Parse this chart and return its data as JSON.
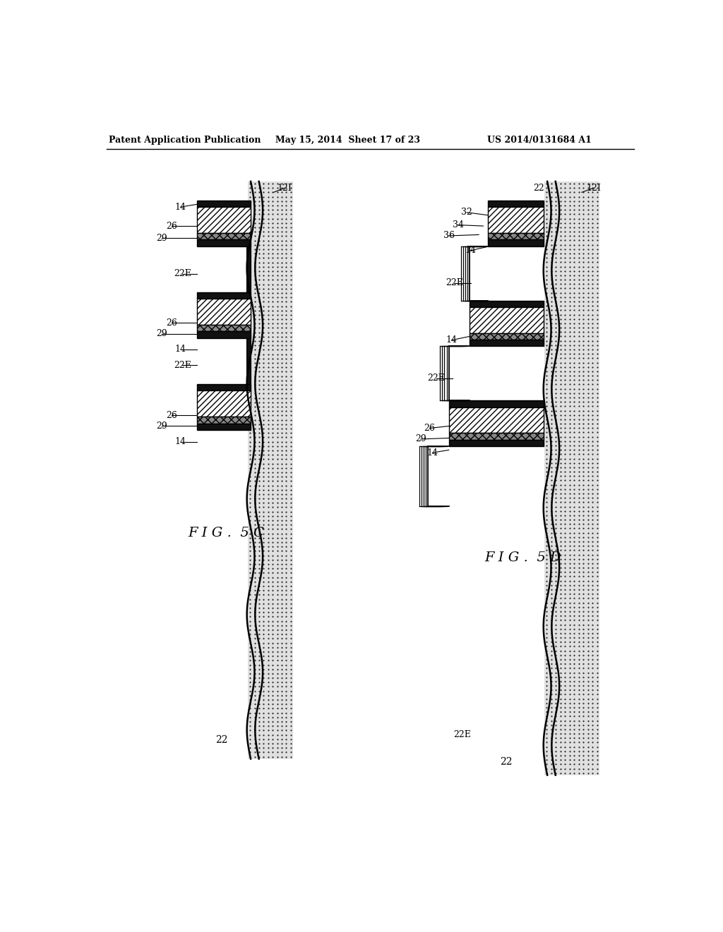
{
  "header_left": "Patent Application Publication",
  "header_mid": "May 15, 2014  Sheet 17 of 23",
  "header_right": "US 2014/0131684 A1",
  "fig5c_label": "F I G .  5 C",
  "fig5d_label": "F I G .  5 D",
  "bg_color": "#ffffff"
}
